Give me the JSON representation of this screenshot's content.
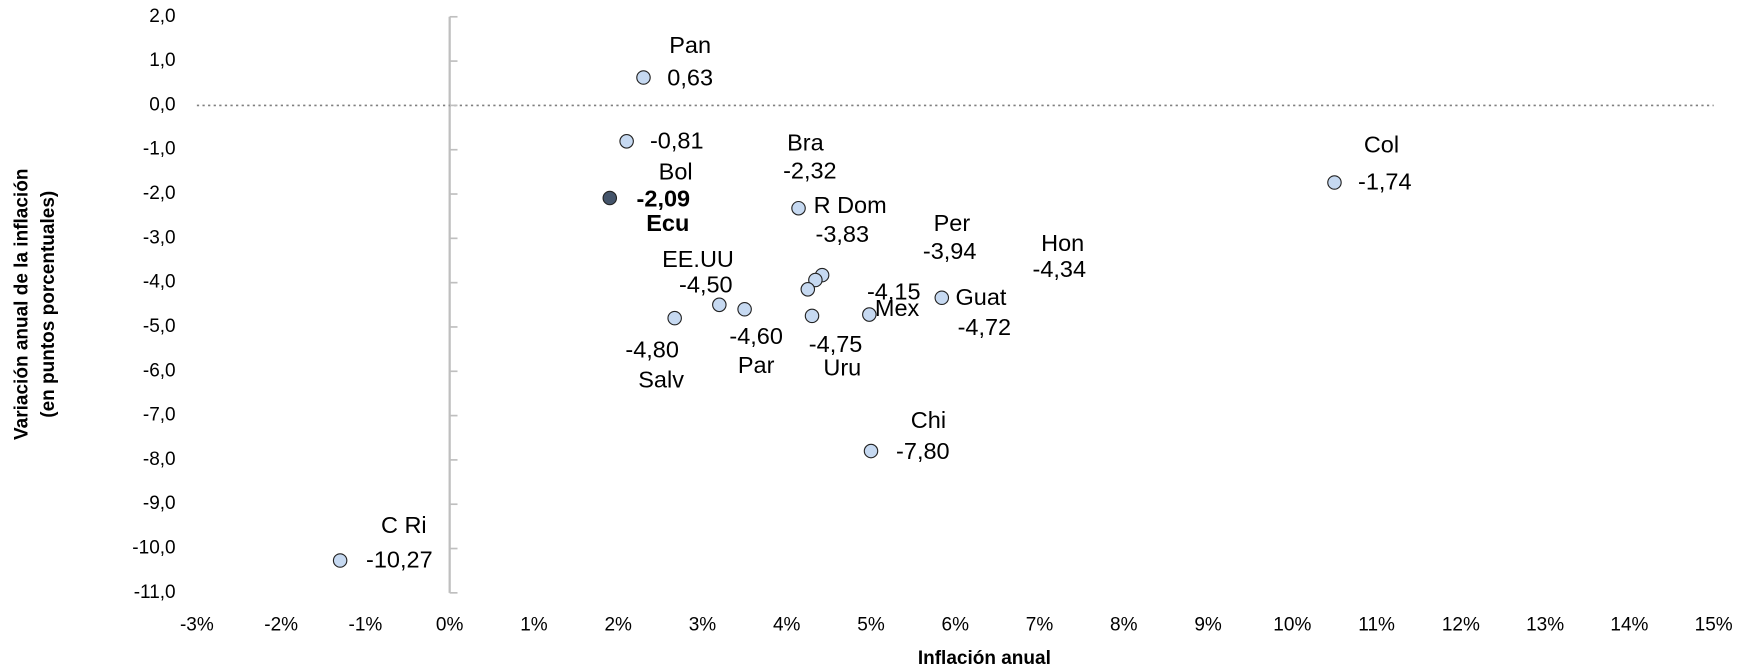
{
  "chart_data": {
    "type": "scatter",
    "xlabel": "Inflación anual",
    "ylabel": [
      "Variación anual de la inflación",
      "(en puntos porcentuales)"
    ],
    "names": [
      "Pan",
      "Bol",
      "Ecu",
      "Bra",
      "R Dom",
      "Per",
      "Mex",
      "Uru",
      "Guat",
      "Hon",
      "Col",
      "Chi",
      "C Ri",
      "EE.UU",
      "Par",
      "Salv"
    ],
    "x": [
      2.3,
      2.1,
      1.9,
      4.14,
      4.42,
      4.34,
      4.25,
      4.3,
      4.98,
      5.84,
      10.5,
      5.0,
      -1.3,
      3.2,
      3.5,
      2.67
    ],
    "values": [
      0.63,
      -0.81,
      -2.09,
      -2.32,
      -3.83,
      -3.94,
      -4.15,
      -4.75,
      -4.72,
      -4.34,
      -1.74,
      -7.8,
      -10.27,
      -4.5,
      -4.6,
      -4.8
    ],
    "value_labels": [
      "0,63",
      "-0,81",
      "-2,09",
      "-2,32",
      "-3,83",
      "-3,94",
      "-4,15",
      "-4,75",
      "-4,72",
      "-4,34",
      "-1,74",
      "-7,80",
      "-10,27",
      "-4,50",
      "-4,60",
      "-4,80"
    ],
    "colors": [
      "#c6d9f1",
      "#c6d9f1",
      "#44546a",
      "#c6d9f1",
      "#c6d9f1",
      "#c6d9f1",
      "#c6d9f1",
      "#c6d9f1",
      "#c6d9f1",
      "#c6d9f1",
      "#c6d9f1",
      "#c6d9f1",
      "#c6d9f1",
      "#c6d9f1",
      "#c6d9f1",
      "#c6d9f1"
    ],
    "xlim": [
      -3,
      15
    ],
    "xticks": [
      {
        "value": -3,
        "label": "-3%"
      },
      {
        "value": -2,
        "label": "-2%"
      },
      {
        "value": -1,
        "label": "-1%"
      },
      {
        "value": 0,
        "label": "0%"
      },
      {
        "value": 1,
        "label": "1%"
      },
      {
        "value": 2,
        "label": "2%"
      },
      {
        "value": 3,
        "label": "3%"
      },
      {
        "value": 4,
        "label": "4%"
      },
      {
        "value": 5,
        "label": "5%"
      },
      {
        "value": 6,
        "label": "6%"
      },
      {
        "value": 7,
        "label": "7%"
      },
      {
        "value": 8,
        "label": "8%"
      },
      {
        "value": 9,
        "label": "9%"
      },
      {
        "value": 10,
        "label": "10%"
      },
      {
        "value": 11,
        "label": "11%"
      },
      {
        "value": 12,
        "label": "12%"
      },
      {
        "value": 13,
        "label": "13%"
      },
      {
        "value": 14,
        "label": "14%"
      },
      {
        "value": 15,
        "label": "15%"
      }
    ],
    "ylim": [
      -11,
      2
    ],
    "yticks": [
      {
        "value": 2,
        "label": "2,0"
      },
      {
        "value": 1,
        "label": "1,0"
      },
      {
        "value": 0,
        "label": "0,0"
      },
      {
        "value": -1,
        "label": "-1,0"
      },
      {
        "value": -2,
        "label": "-2,0"
      },
      {
        "value": -3,
        "label": "-3,0"
      },
      {
        "value": -4,
        "label": "-4,0"
      },
      {
        "value": -5,
        "label": "-5,0"
      },
      {
        "value": -6,
        "label": "-6,0"
      },
      {
        "value": -7,
        "label": "-7,0"
      },
      {
        "value": -8,
        "label": "-8,0"
      },
      {
        "value": -9,
        "label": "-9,0"
      },
      {
        "value": -10,
        "label": "-10,0"
      },
      {
        "value": -11,
        "label": "-11,0"
      }
    ]
  }
}
